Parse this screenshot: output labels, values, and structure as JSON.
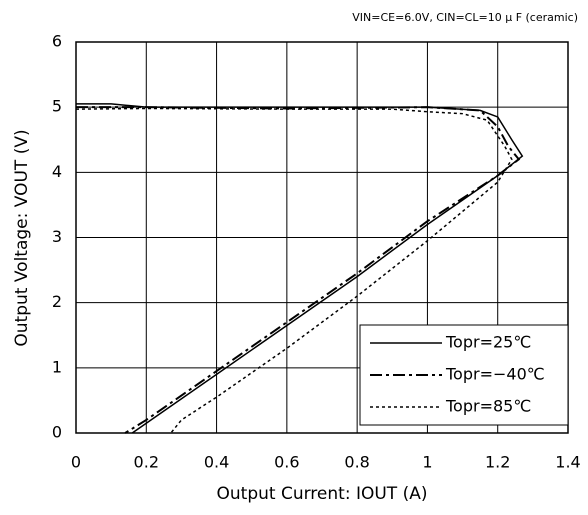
{
  "chart_data": {
    "type": "line",
    "annotation": "VIN=CE=6.0V, CIN=CL=10 μ F (ceramic)",
    "x_label": "Output Current: IOUT (A)",
    "y_label": "Output Voltage: VOUT (V)",
    "xlim": [
      0,
      1.4
    ],
    "xticks": [
      0,
      0.2,
      0.4,
      0.6,
      0.8,
      1,
      1.2,
      1.4
    ],
    "ylim": [
      0,
      6
    ],
    "yticks": [
      0,
      1,
      2,
      3,
      4,
      5,
      6
    ],
    "grid": true,
    "legend": "lower right",
    "series": [
      {
        "name": "Topr=25℃",
        "color": "#000000",
        "style": "solid",
        "x": [
          0,
          0.1,
          0.2,
          0.6,
          1.0,
          1.15,
          1.2,
          1.24,
          1.27,
          1.2,
          1.0,
          0.8,
          0.6,
          0.4,
          0.2,
          0.16
        ],
        "values": [
          5.05,
          5.05,
          5.0,
          5.0,
          5.0,
          4.95,
          4.85,
          4.5,
          4.25,
          3.95,
          3.2,
          2.4,
          1.65,
          0.9,
          0.15,
          0
        ]
      },
      {
        "name": "Topr=−40℃",
        "color": "#000000",
        "style": "dashdot",
        "x": [
          0,
          0.2,
          0.6,
          1.0,
          1.15,
          1.2,
          1.23,
          1.26,
          1.2,
          1.0,
          0.8,
          0.6,
          0.4,
          0.2,
          0.14
        ],
        "values": [
          5.0,
          5.0,
          4.98,
          5.0,
          4.95,
          4.7,
          4.4,
          4.2,
          3.95,
          3.25,
          2.45,
          1.7,
          0.95,
          0.2,
          0
        ]
      },
      {
        "name": "Topr=85℃",
        "color": "#000000",
        "style": "dotted",
        "x": [
          0,
          0.2,
          0.6,
          0.9,
          1.0,
          1.1,
          1.17,
          1.22,
          1.24,
          1.2,
          1.0,
          0.8,
          0.6,
          0.4,
          0.3,
          0.27
        ],
        "values": [
          4.97,
          4.98,
          4.97,
          4.97,
          4.93,
          4.9,
          4.8,
          4.4,
          4.2,
          3.85,
          2.95,
          2.1,
          1.3,
          0.55,
          0.2,
          0
        ]
      }
    ]
  }
}
